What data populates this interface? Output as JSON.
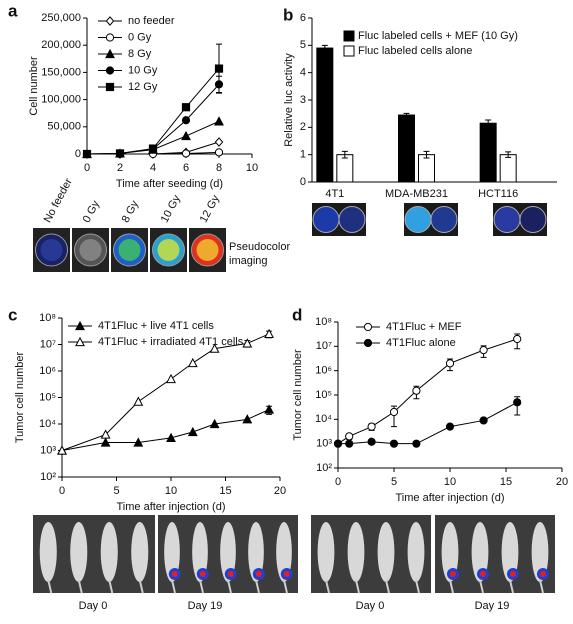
{
  "chart_data": [
    {
      "type": "line",
      "label": "a",
      "x_label": "Time after seeding (d)",
      "y_label": "Cell number",
      "x": [
        0,
        2,
        4,
        6,
        8
      ],
      "xlim": [
        0,
        10
      ],
      "xticks": [
        0,
        2,
        4,
        6,
        8,
        10
      ],
      "ylim": [
        0,
        250000
      ],
      "yticks": [
        0,
        {
          "value": 50000,
          "label": "50,000"
        },
        {
          "value": 100000,
          "label": "100,000"
        },
        {
          "value": 150000,
          "label": "150,000"
        },
        {
          "value": 200000,
          "label": "200,000"
        },
        {
          "value": 250000,
          "label": "250,000"
        }
      ],
      "legend": "upper left",
      "series": [
        {
          "name": "no feeder",
          "color": "#000000",
          "marker": "diamond-open",
          "values": [
            0,
            0,
            0,
            3000,
            22000
          ],
          "errors": [
            null,
            null,
            null,
            null,
            null
          ]
        },
        {
          "name": "0 Gy",
          "color": "#000000",
          "marker": "circle-open",
          "values": [
            0,
            0,
            0,
            1000,
            3000
          ],
          "errors": [
            null,
            null,
            null,
            null,
            null
          ]
        },
        {
          "name": "8 Gy",
          "color": "#000000",
          "marker": "triangle",
          "values": [
            0,
            1000,
            8000,
            33000,
            60000
          ],
          "errors": [
            null,
            null,
            null,
            null,
            null
          ]
        },
        {
          "name": "10 Gy",
          "color": "#000000",
          "marker": "circle",
          "values": [
            0,
            1000,
            9000,
            62000,
            128000
          ],
          "errors": [
            null,
            null,
            null,
            null,
            15000
          ]
        },
        {
          "name": "12 Gy",
          "color": "#000000",
          "marker": "square",
          "values": [
            0,
            1000,
            10000,
            86000,
            157000
          ],
          "errors": [
            null,
            null,
            null,
            null,
            45000
          ]
        }
      ],
      "image_labels": [
        "No feeder",
        "0 Gy",
        "8 Gy",
        "10 Gy",
        "12 Gy"
      ],
      "image_caption": [
        "Pseudocolor",
        "imaging"
      ]
    },
    {
      "type": "bar",
      "label": "b",
      "y_label": "Relative luc activity",
      "categories": [
        "4T1",
        "MDA-MB231",
        "HCT116"
      ],
      "ylim": [
        0,
        6
      ],
      "yticks": [
        0,
        1,
        2,
        3,
        4,
        5,
        6
      ],
      "legend": "upper center",
      "series": [
        {
          "name": "Fluc labeled cells + MEF (10 Gy)",
          "color": "#000000",
          "values": [
            4.9,
            2.45,
            2.15
          ],
          "errors": [
            0.1,
            0.06,
            0.12
          ]
        },
        {
          "name": "Fluc labeled cells alone",
          "color": "#ffffff",
          "values": [
            1,
            1,
            1
          ],
          "errors": [
            0.12,
            0.12,
            0.1
          ]
        }
      ]
    },
    {
      "type": "line",
      "label": "c",
      "x_label": "Time after injection (d)",
      "y_label": "Tumor cell number",
      "x": [
        0,
        4,
        7,
        10,
        12,
        14,
        17,
        19
      ],
      "xlim": [
        0,
        20
      ],
      "xticks": [
        0,
        5,
        10,
        15,
        20
      ],
      "log_y": true,
      "ylim": [
        100,
        100000000
      ],
      "yticks": [
        {
          "value": 100,
          "label": "10²"
        },
        {
          "value": 1000,
          "label": "10³"
        },
        {
          "value": 10000,
          "label": "10⁴"
        },
        {
          "value": 100000,
          "label": "10⁵"
        },
        {
          "value": 1000000,
          "label": "10⁶"
        },
        {
          "value": 10000000,
          "label": "10⁷"
        },
        {
          "value": 100000000,
          "label": "10⁸"
        }
      ],
      "legend": "upper left",
      "series": [
        {
          "name": "4T1Fluc + live 4T1 cells",
          "color": "#000000",
          "marker": "triangle",
          "values": [
            1000,
            2000,
            2000,
            3000,
            5000,
            10000,
            15000,
            35000
          ],
          "errors": [
            null,
            null,
            null,
            null,
            null,
            null,
            null,
            12000
          ]
        },
        {
          "name": "4T1Fluc + irradiated 4T1 cells",
          "color": "#000000",
          "marker": "triangle-open",
          "values": [
            1000,
            4000,
            70000,
            500000,
            2000000,
            7000000,
            11000000,
            25000000
          ],
          "errors": [
            null,
            null,
            null,
            null,
            null,
            null,
            3000000,
            7000000
          ]
        }
      ],
      "image_labels": [
        "Day 0",
        "Day 19"
      ]
    },
    {
      "type": "line",
      "label": "d",
      "x_label": "Time after injection (d)",
      "y_label": "Tumor cell number",
      "x": [
        0,
        1,
        3,
        5,
        7,
        10,
        13,
        16
      ],
      "xlim": [
        0,
        20
      ],
      "xticks": [
        0,
        5,
        10,
        15,
        20
      ],
      "log_y": true,
      "ylim": [
        100,
        100000000
      ],
      "yticks": [
        {
          "value": 100,
          "label": "10²"
        },
        {
          "value": 1000,
          "label": "10³"
        },
        {
          "value": 10000,
          "label": "10⁴"
        },
        {
          "value": 100000,
          "label": "10⁵"
        },
        {
          "value": 1000000,
          "label": "10⁶"
        },
        {
          "value": 10000000,
          "label": "10⁷"
        },
        {
          "value": 100000000,
          "label": "10⁸"
        }
      ],
      "legend": "upper left",
      "series": [
        {
          "name": "4T1Fluc + MEF",
          "color": "#000000",
          "marker": "circle-open",
          "values": [
            1000,
            2000,
            5000,
            20000,
            150000,
            2000000,
            7000000,
            20000000
          ],
          "errors": [
            null,
            500,
            1500,
            15000,
            80000,
            1000000,
            3500000,
            12000000
          ]
        },
        {
          "name": "4T1Fluc alone",
          "color": "#000000",
          "marker": "circle",
          "values": [
            1000,
            1000,
            1200,
            1000,
            1000,
            5000,
            9000,
            50000
          ],
          "errors": [
            null,
            null,
            null,
            null,
            null,
            null,
            null,
            35000
          ]
        }
      ],
      "image_labels": [
        "Day 0",
        "Day 19"
      ]
    }
  ]
}
